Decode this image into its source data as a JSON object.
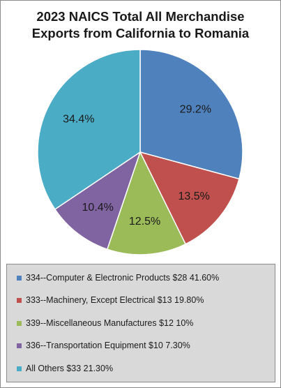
{
  "chart_data": {
    "type": "pie",
    "title_lines": [
      "2023 NAICS Total All Merchandise",
      "Exports from California to Romania"
    ],
    "slices": [
      {
        "legend_label": "334--Computer & Electronic Products $28 41.60%",
        "value": 29.2,
        "data_label": "29.2%",
        "color": "#4f81bd"
      },
      {
        "legend_label": "333--Machinery, Except Electrical $13 19.80%",
        "value": 13.5,
        "data_label": "13.5%",
        "color": "#c0504d"
      },
      {
        "legend_label": "339--Miscellaneous Manufactures $12 10%",
        "value": 12.5,
        "data_label": "12.5%",
        "color": "#9bbb59"
      },
      {
        "legend_label": "336--Transportation Equipment $10 7.30%",
        "value": 10.4,
        "data_label": "10.4%",
        "color": "#8064a2"
      },
      {
        "legend_label": "All Others $33 21.30%",
        "value": 34.4,
        "data_label": "34.4%",
        "color": "#4bacc6"
      }
    ],
    "start_angle_deg": 0,
    "direction": "clockwise",
    "legend_position": "bottom"
  }
}
